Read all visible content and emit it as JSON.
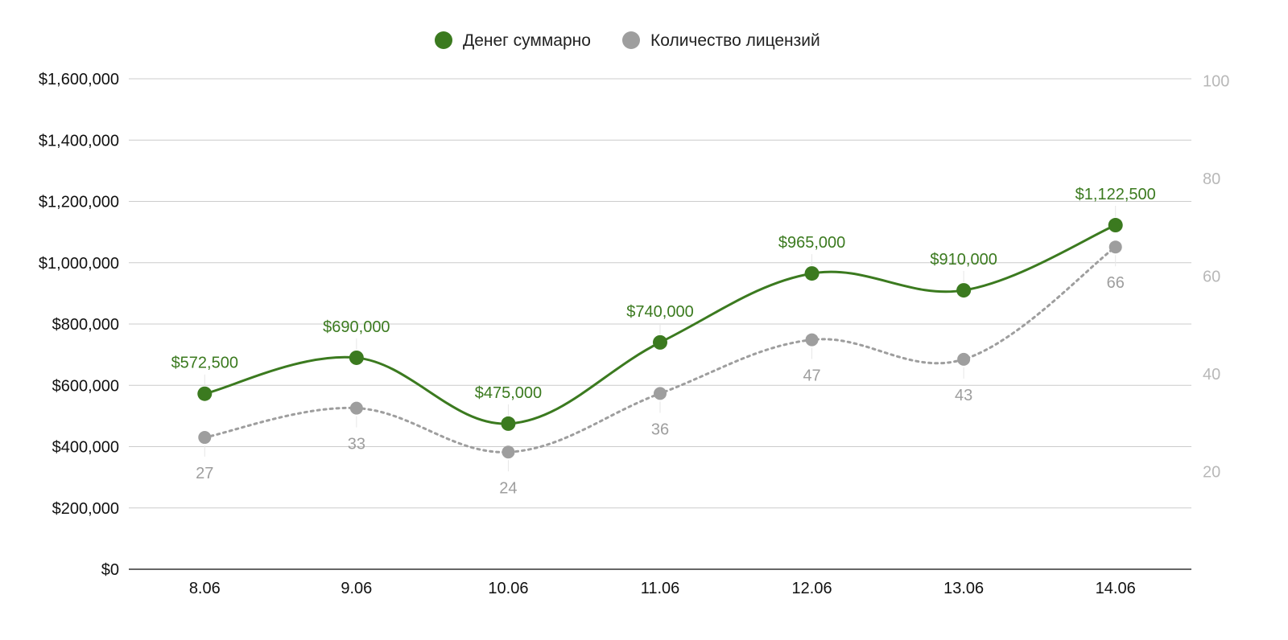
{
  "chart_data": {
    "type": "line",
    "categories": [
      "8.06",
      "9.06",
      "10.06",
      "11.06",
      "12.06",
      "13.06",
      "14.06"
    ],
    "series": [
      {
        "name": "Денег суммарно",
        "axis": "left",
        "color": "#3b7a1f",
        "line_style": "solid",
        "values": [
          572500,
          690000,
          475000,
          740000,
          965000,
          910000,
          1122500
        ],
        "labels": [
          "$572,500",
          "$690,000",
          "$475,000",
          "$740,000",
          "$965,000",
          "$910,000",
          "$1,122,500"
        ]
      },
      {
        "name": "Количество лицензий",
        "axis": "right",
        "color": "#9e9e9e",
        "line_style": "dotted",
        "values": [
          27,
          33,
          24,
          36,
          47,
          43,
          66
        ],
        "labels": [
          "27",
          "33",
          "24",
          "36",
          "47",
          "43",
          "66"
        ]
      }
    ],
    "y_left": {
      "range": [
        0,
        1600000
      ],
      "ticks": [
        0,
        200000,
        400000,
        600000,
        800000,
        1000000,
        1200000,
        1400000,
        1600000
      ],
      "tick_labels": [
        "$0",
        "$200,000",
        "$400,000",
        "$600,000",
        "$800,000",
        "$1,000,000",
        "$1,200,000",
        "$1,400,000",
        "$1,600,000"
      ]
    },
    "y_right": {
      "range": [
        0,
        110
      ],
      "ticks": [
        20,
        40,
        60,
        80,
        100
      ],
      "tick_labels": [
        "20",
        "40",
        "60",
        "80",
        "100"
      ],
      "color": "#b8b8b8"
    },
    "grid": true,
    "legend_position": "top-center",
    "title": "",
    "xlabel": "",
    "ylabel": ""
  }
}
